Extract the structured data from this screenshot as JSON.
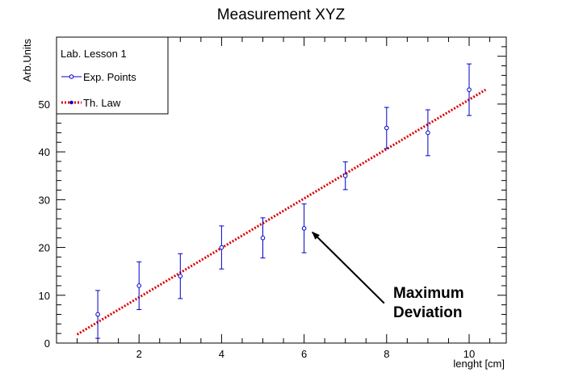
{
  "chart_data": {
    "type": "scatter",
    "title": "Measurement XYZ",
    "xlabel": "lenght [cm]",
    "ylabel": "Arb.Units",
    "xlim": [
      0,
      10.9
    ],
    "ylim": [
      0,
      64
    ],
    "x_ticks": [
      2,
      4,
      6,
      8,
      10
    ],
    "y_ticks": [
      0,
      10,
      20,
      30,
      40,
      50
    ],
    "grid": false,
    "legend": {
      "placement": "top-left",
      "header": "Lab. Lesson 1",
      "entries": [
        "Exp. Points",
        "Th. Law"
      ]
    },
    "series": [
      {
        "name": "Exp. Points",
        "kind": "points-with-errors",
        "color": "#0000cc",
        "x": [
          1,
          2,
          3,
          4,
          5,
          6,
          7,
          8,
          9,
          10
        ],
        "y": [
          6,
          12,
          14,
          20,
          22,
          24,
          35,
          45,
          44,
          53
        ],
        "err": [
          5,
          5,
          4.7,
          4.5,
          4.2,
          5.1,
          2.9,
          4.3,
          4.8,
          5.4
        ]
      },
      {
        "name": "Th. Law",
        "kind": "dotted-line",
        "color": "#dd0000",
        "x": [
          0.5,
          10.4
        ],
        "y": [
          1.8,
          53
        ]
      }
    ],
    "annotation": {
      "lines": [
        "Maximum",
        "Deviation"
      ],
      "target_x": 6.2,
      "target_y": 23.2,
      "from_x": 8,
      "from_y": 8
    }
  }
}
